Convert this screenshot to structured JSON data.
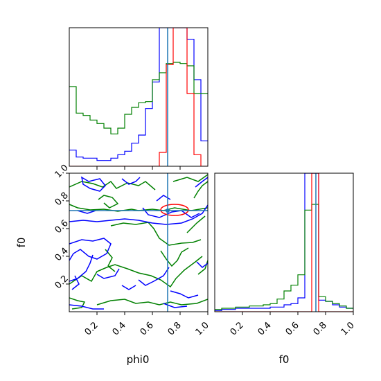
{
  "chart_data": {
    "type": "corner-plot",
    "parameters": [
      "phi0",
      "f0"
    ],
    "colors": {
      "truth": "#1f77b4",
      "series_a": "#0000ff",
      "series_b": "#008000",
      "series_c": "#ff0000"
    },
    "truth": {
      "phi0": 0.71,
      "f0": 0.73
    },
    "axis_range": [
      0,
      1
    ],
    "ticks": [
      0.2,
      0.4,
      0.6,
      0.8,
      1.0
    ],
    "tick_labels": [
      "0.2",
      "0.4",
      "0.6",
      "0.8",
      "1.0"
    ],
    "diag_ticks": [
      0.2,
      0.4,
      0.6,
      0.8
    ],
    "xlabel_phi0": "phi0",
    "xlabel_f0": "f0",
    "ylabel_f0": "f0",
    "hist_phi0": {
      "bins": [
        0.0,
        0.05,
        0.1,
        0.15,
        0.2,
        0.25,
        0.3,
        0.35,
        0.4,
        0.45,
        0.5,
        0.55,
        0.6,
        0.65,
        0.7,
        0.75,
        0.8,
        0.85,
        0.9,
        0.95,
        1.0
      ],
      "series_a": [
        0.14,
        0.08,
        0.07,
        0.07,
        0.05,
        0.05,
        0.07,
        0.1,
        0.13,
        0.2,
        0.27,
        0.5,
        0.73,
        1.2,
        1.2,
        1.2,
        1.2,
        1.1,
        0.75,
        0.22
      ],
      "series_b": [
        0.69,
        0.46,
        0.44,
        0.4,
        0.37,
        0.33,
        0.28,
        0.33,
        0.45,
        0.51,
        0.55,
        0.56,
        0.75,
        0.81,
        0.89,
        0.9,
        0.89,
        0.87,
        0.63,
        0.63
      ],
      "series_c": [
        0,
        0,
        0,
        0,
        0,
        0,
        0,
        0,
        0,
        0,
        0,
        0,
        0.0,
        0.12,
        0.88,
        1.2,
        1.2,
        0.63,
        0.1,
        0.0
      ]
    },
    "hist_f0": {
      "bins": [
        0.0,
        0.05,
        0.1,
        0.15,
        0.2,
        0.25,
        0.3,
        0.35,
        0.4,
        0.45,
        0.5,
        0.55,
        0.6,
        0.65,
        0.7,
        0.75,
        0.8,
        0.85,
        0.9,
        0.95,
        1.0
      ],
      "series_a": [
        0.01,
        0.02,
        0.02,
        0.03,
        0.03,
        0.03,
        0.03,
        0.03,
        0.04,
        0.04,
        0.06,
        0.07,
        0.12,
        1.2,
        1.2,
        0.1,
        0.09,
        0.06,
        0.04,
        0.03
      ],
      "series_b": [
        0.02,
        0.03,
        0.03,
        0.04,
        0.04,
        0.05,
        0.05,
        0.06,
        0.07,
        0.11,
        0.18,
        0.23,
        0.32,
        0.88,
        0.93,
        0.13,
        0.09,
        0.07,
        0.05,
        0.03
      ],
      "series_c": [
        0,
        0,
        0,
        0,
        0,
        0,
        0,
        0,
        0,
        0,
        0,
        0,
        0,
        0,
        1.2,
        0,
        0,
        0,
        0,
        0
      ]
    }
  }
}
